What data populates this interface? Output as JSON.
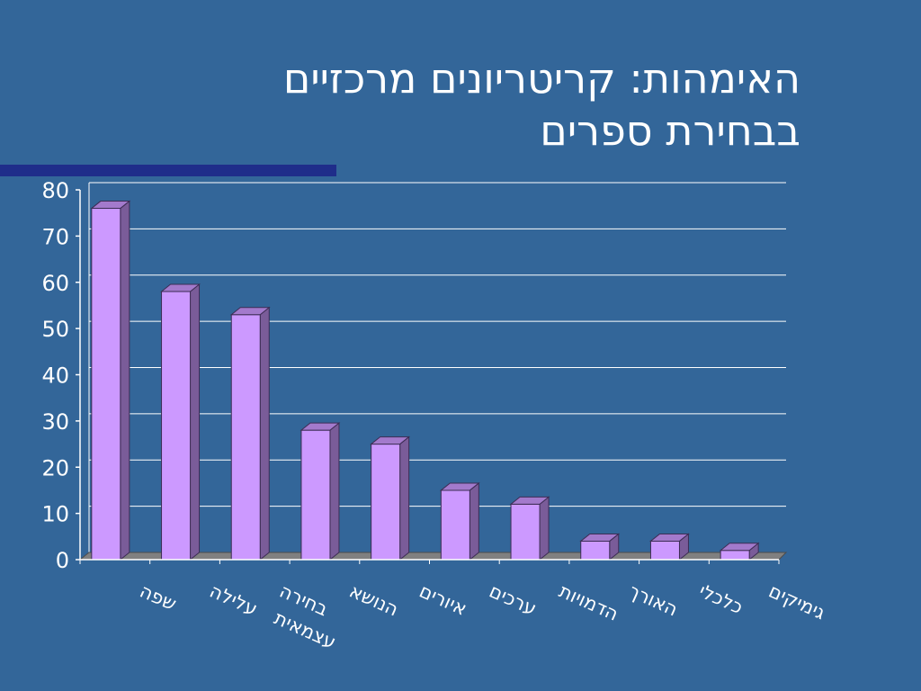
{
  "slide": {
    "title_line1": "האימהות: קריטריונים מרכזיים",
    "title_line2": "בבחירת ספרים",
    "accent_color": "#1f2d8a"
  },
  "chart_data": {
    "type": "bar",
    "style": "3d-column",
    "categories": [
      "שפה",
      "עלילה",
      "בחירה עצמאית",
      "הנושא",
      "איורים",
      "ערכים",
      "הדמויות",
      "האורך",
      "כלכלי",
      "גימיקים"
    ],
    "values": [
      76,
      58,
      53,
      28,
      25,
      15,
      12,
      4,
      4,
      2
    ],
    "ylim": [
      0,
      80
    ],
    "yticks": [
      0,
      10,
      20,
      30,
      40,
      50,
      60,
      70,
      80
    ],
    "grid": true,
    "legend": "none",
    "bar_color": "#cc99ff"
  }
}
